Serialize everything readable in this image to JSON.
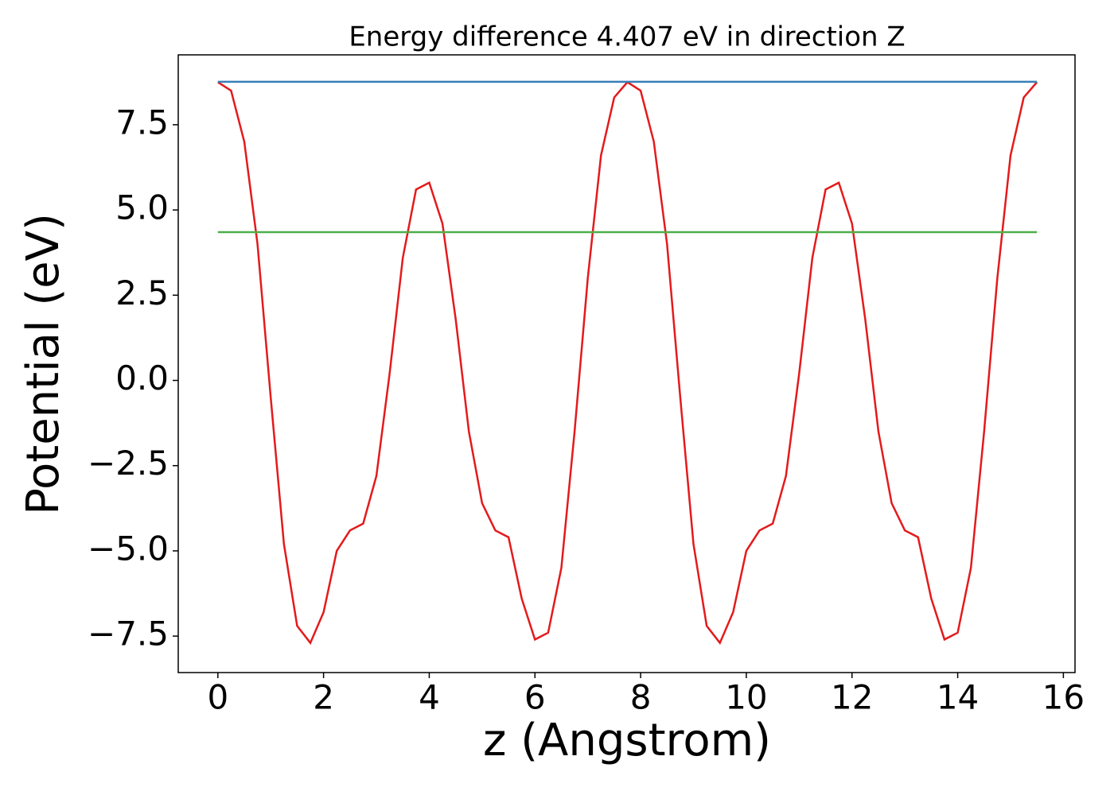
{
  "chart_data": {
    "type": "line",
    "title": "Energy difference 4.407 eV in direction Z",
    "xlabel": "z (Angstrom)",
    "ylabel": "Potential (eV)",
    "xlim": [
      -0.75,
      16.22
    ],
    "ylim": [
      -8.57,
      9.55
    ],
    "xticks": [
      0,
      2,
      4,
      6,
      8,
      10,
      12,
      14,
      16
    ],
    "yticks": [
      {
        "value": -7.5,
        "label": "−7.5"
      },
      {
        "value": -5,
        "label": "−5.0"
      },
      {
        "value": -2.5,
        "label": "−2.5"
      },
      {
        "value": 0,
        "label": "0.0"
      },
      2.5,
      {
        "value": 5,
        "label": "5.0"
      },
      7.5
    ],
    "grid": false,
    "series": [
      {
        "color": "#e41a1c",
        "x": [
          0,
          0.25,
          0.5,
          0.75,
          1,
          1.25,
          1.5,
          1.75,
          2,
          2.25,
          2.5,
          2.75,
          3,
          3.25,
          3.5,
          3.75,
          4,
          4.25,
          4.5,
          4.75,
          5,
          5.25,
          5.5,
          5.75,
          6,
          6.25,
          6.5,
          6.75,
          7,
          7.25,
          7.5,
          7.75,
          8,
          8.25,
          8.5,
          8.75,
          9,
          9.25,
          9.5,
          9.75,
          10,
          10.25,
          10.5,
          10.75,
          11,
          11.25,
          11.5,
          11.75,
          12,
          12.25,
          12.5,
          12.75,
          13,
          13.25,
          13.5,
          13.75,
          14,
          14.25,
          14.5,
          14.75,
          15,
          15.25,
          15.5
        ],
        "values": [
          8.75,
          8.5,
          7.0,
          4.0,
          -0.5,
          -4.8,
          -7.2,
          -7.7,
          -6.8,
          -5.0,
          -4.4,
          -4.2,
          -2.8,
          0.2,
          3.6,
          5.6,
          5.8,
          4.6,
          1.8,
          -1.5,
          -3.6,
          -4.4,
          -4.6,
          -6.4,
          -7.6,
          -7.4,
          -5.5,
          -1.5,
          3.0,
          6.6,
          8.3,
          8.75,
          8.5,
          7.0,
          4.0,
          -0.5,
          -4.8,
          -7.2,
          -7.7,
          -6.8,
          -5.0,
          -4.4,
          -4.2,
          -2.8,
          0.2,
          3.6,
          5.6,
          5.8,
          4.6,
          1.8,
          -1.5,
          -3.6,
          -4.4,
          -4.6,
          -6.4,
          -7.6,
          -7.4,
          -5.5,
          -1.5,
          3.0,
          6.6,
          8.3,
          8.75
        ]
      },
      {
        "color": "#377eb8",
        "x": [
          0,
          15.5
        ],
        "values": [
          8.76,
          8.76
        ]
      },
      {
        "color": "#4daf4a",
        "x": [
          0,
          15.5
        ],
        "values": [
          4.35,
          4.35
        ]
      }
    ]
  }
}
